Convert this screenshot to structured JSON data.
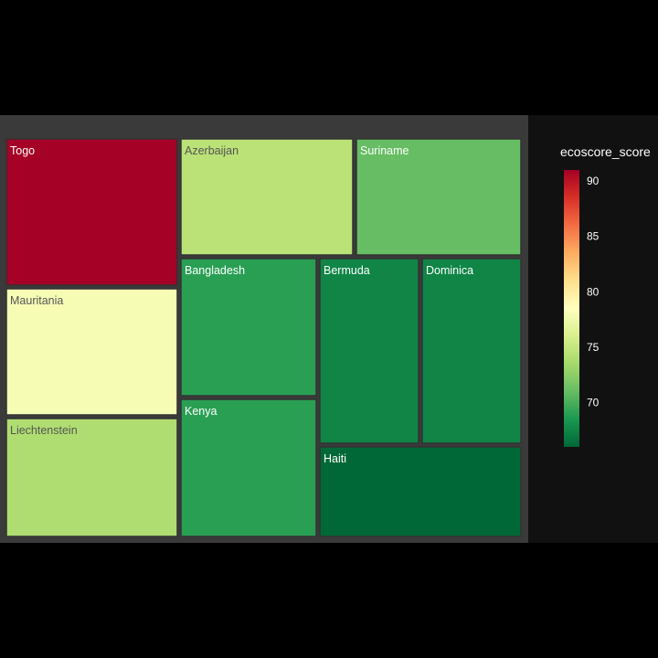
{
  "chart_data": {
    "type": "treemap",
    "color_metric": "ecoscore_score",
    "colorscale": "RdYlGn (reversed)",
    "color_range": [
      66,
      91
    ],
    "colorbar": {
      "title": "ecoscore_score",
      "ticks": [
        90,
        85,
        80,
        75,
        70
      ]
    },
    "tiles": [
      {
        "label": "Togo",
        "value": 91
      },
      {
        "label": "Mauritania",
        "value": 78
      },
      {
        "label": "Liechtenstein",
        "value": 74
      },
      {
        "label": "Azerbaijan",
        "value": 74.5
      },
      {
        "label": "Suriname",
        "value": 71
      },
      {
        "label": "Bangladesh",
        "value": 69
      },
      {
        "label": "Bermuda",
        "value": 67.5
      },
      {
        "label": "Dominica",
        "value": 67.5
      },
      {
        "label": "Kenya",
        "value": 69
      },
      {
        "label": "Haiti",
        "value": 66
      }
    ],
    "colors": {
      "page_background": "#000000",
      "plot_background": "#3a3a3a",
      "paper_background": "#111111",
      "tile_border": "#333333"
    }
  }
}
